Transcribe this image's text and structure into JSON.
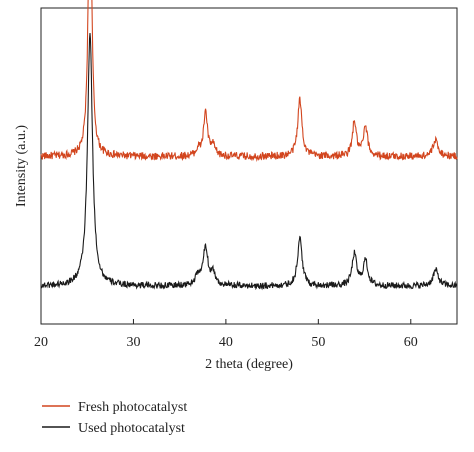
{
  "chart_data": {
    "type": "line",
    "title": "",
    "xlabel": "2 theta (degree)",
    "ylabel": "Intensity (a.u.)",
    "xlim": [
      20,
      65
    ],
    "xticks": [
      20,
      30,
      40,
      50,
      60
    ],
    "yticks_shown": false,
    "grid": false,
    "legend": "bottom",
    "series": [
      {
        "name": "Fresh photocatalyst",
        "color": "#d2451e",
        "baseline": 0.53,
        "noise": 0.012,
        "peaks": [
          {
            "x": 25.3,
            "height": 0.92,
            "width": 0.22
          },
          {
            "x": 37.0,
            "height": 0.02,
            "width": 0.3
          },
          {
            "x": 37.8,
            "height": 0.14,
            "width": 0.25
          },
          {
            "x": 38.6,
            "height": 0.03,
            "width": 0.3
          },
          {
            "x": 48.0,
            "height": 0.18,
            "width": 0.28
          },
          {
            "x": 53.9,
            "height": 0.11,
            "width": 0.25
          },
          {
            "x": 55.1,
            "height": 0.09,
            "width": 0.28
          },
          {
            "x": 62.7,
            "height": 0.05,
            "width": 0.35
          }
        ]
      },
      {
        "name": "Used photocatalyst",
        "color": "#1a1a1a",
        "baseline": 0.12,
        "noise": 0.01,
        "peaks": [
          {
            "x": 25.3,
            "height": 0.8,
            "width": 0.32
          },
          {
            "x": 37.0,
            "height": 0.03,
            "width": 0.35
          },
          {
            "x": 37.8,
            "height": 0.12,
            "width": 0.3
          },
          {
            "x": 38.6,
            "height": 0.04,
            "width": 0.3
          },
          {
            "x": 48.0,
            "height": 0.15,
            "width": 0.3
          },
          {
            "x": 53.9,
            "height": 0.1,
            "width": 0.3
          },
          {
            "x": 55.1,
            "height": 0.08,
            "width": 0.3
          },
          {
            "x": 62.7,
            "height": 0.05,
            "width": 0.35
          }
        ]
      }
    ]
  }
}
